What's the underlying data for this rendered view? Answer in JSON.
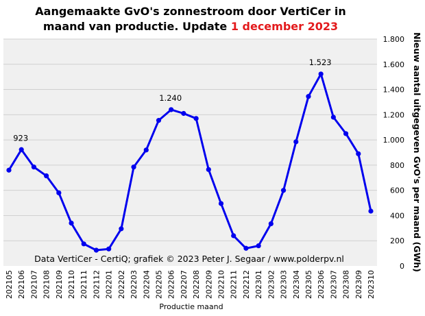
{
  "chart_data": {
    "type": "line",
    "title_line1": "Aangemaakte GvO's zonnestroom door VertiCer in",
    "title_line2": "maand van productie. Update ",
    "title_highlight": "1 december 2023",
    "xlabel": "Productie maand",
    "ylabel": "Nieuw aantal uitgegeven GvO's per maand (GWh)",
    "credit": "Data VertiCer - CertiQ; grafiek © 2023 Peter J. Segaar / www.polderpv.nl",
    "ylim": [
      0,
      1800
    ],
    "yticks": [
      0,
      200,
      400,
      600,
      800,
      1000,
      1200,
      1400,
      1600,
      1800
    ],
    "ytick_labels": [
      "0",
      "200",
      "400",
      "600",
      "800",
      "1.000",
      "1.200",
      "1.400",
      "1.600",
      "1.800"
    ],
    "grid": true,
    "categories": [
      "202105",
      "202106",
      "202107",
      "202108",
      "202109",
      "202110",
      "202111",
      "202112",
      "202201",
      "202202",
      "202203",
      "202204",
      "202205",
      "202206",
      "202207",
      "202208",
      "202209",
      "202210",
      "202211",
      "202212",
      "202301",
      "202302",
      "202303",
      "202304",
      "202305",
      "202306",
      "202307",
      "202308",
      "202309",
      "202310"
    ],
    "series": [
      {
        "color": "#0000ee",
        "values": [
          760,
          923,
          785,
          715,
          580,
          340,
          175,
          125,
          135,
          295,
          785,
          920,
          1155,
          1240,
          1210,
          1170,
          765,
          495,
          240,
          140,
          160,
          335,
          600,
          985,
          1345,
          1523,
          1180,
          1050,
          890,
          435
        ]
      }
    ],
    "annotations": [
      {
        "index": 1,
        "text": "923"
      },
      {
        "index": 13,
        "text": "1.240"
      },
      {
        "index": 25,
        "text": "1.523"
      }
    ],
    "colors": {
      "plot_background": "#f0f0f0",
      "grid": "#d0d0d0",
      "line": "#0000ee",
      "highlight": "#e31a1c"
    }
  }
}
